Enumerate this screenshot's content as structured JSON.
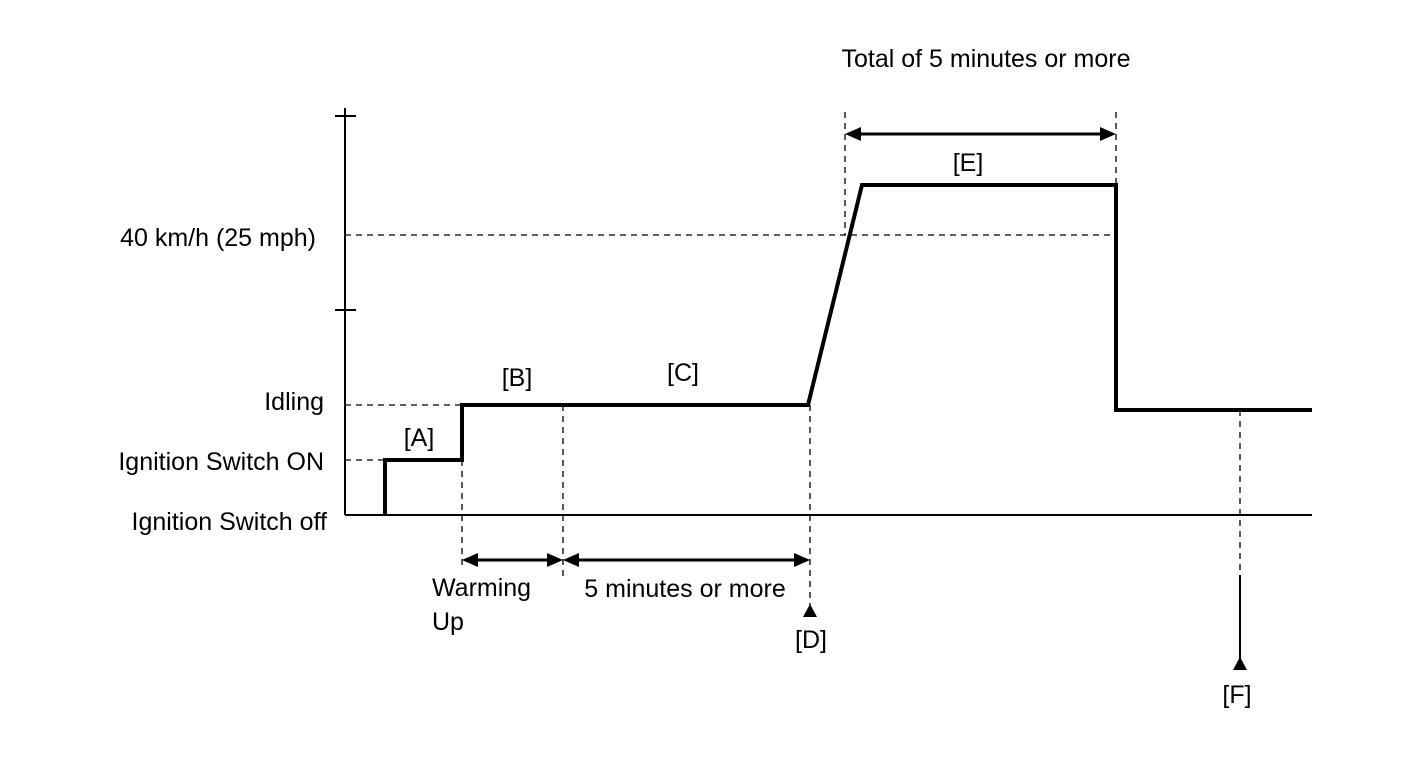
{
  "y_labels": {
    "speed": "40 km/h (25 mph)",
    "idling": "Idling",
    "ign_on": "Ignition Switch ON",
    "ign_off": "Ignition Switch off"
  },
  "phases": {
    "a": "[A]",
    "b": "[B]",
    "c": "[C]",
    "d": "[D]",
    "e": "[E]",
    "f": "[F]"
  },
  "durations": {
    "warming_line1": "Warming",
    "warming_line2": "Up",
    "five_min": "5 minutes or more",
    "total_five_min": "Total of 5 minutes or more"
  }
}
